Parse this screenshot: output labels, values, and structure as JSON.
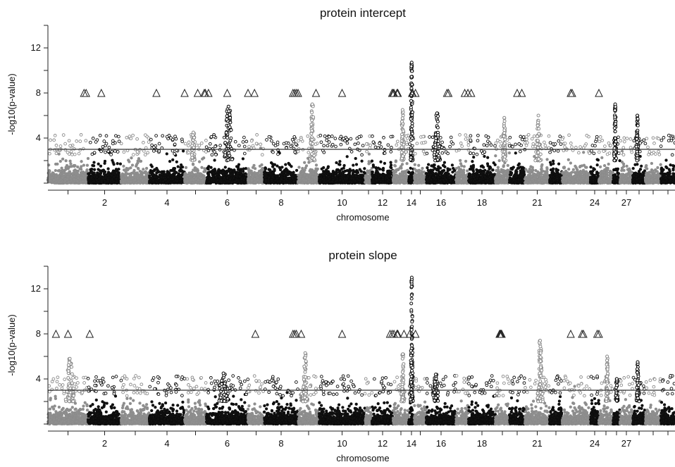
{
  "chart_data": [
    {
      "type": "scatter",
      "title": "protein intercept",
      "xlabel": "chromosome",
      "ylabel": "-log10(p-value)",
      "ylim": [
        0,
        14
      ],
      "yticks": [
        4,
        8,
        12
      ],
      "xticks": [
        {
          "label": "2",
          "chrom": 2
        },
        {
          "label": "4",
          "chrom": 4
        },
        {
          "label": "6",
          "chrom": 6
        },
        {
          "label": "8",
          "chrom": 8
        },
        {
          "label": "10",
          "chrom": 10
        },
        {
          "label": "12",
          "chrom": 12
        },
        {
          "label": "14",
          "chrom": 14
        },
        {
          "label": "16",
          "chrom": 16
        },
        {
          "label": "18",
          "chrom": 18
        },
        {
          "label": "21",
          "chrom": 21
        },
        {
          "label": "24",
          "chrom": 24
        },
        {
          "label": "27",
          "chrom": 27
        }
      ],
      "threshold": 3,
      "peaks": [
        {
          "chrom": 5,
          "max": 4.5
        },
        {
          "chrom": 6,
          "max": 6.8
        },
        {
          "chrom": 9,
          "max": 7.0
        },
        {
          "chrom": 13,
          "max": 6.5
        },
        {
          "chrom": 14,
          "max": 10.7
        },
        {
          "chrom": 16,
          "max": 6.2
        },
        {
          "chrom": 19,
          "max": 5.8
        },
        {
          "chrom": 21,
          "max": 6.0
        },
        {
          "chrom": 26,
          "max": 7.0
        },
        {
          "chrom": 28,
          "max": 6.0
        }
      ],
      "triangles_y": 8,
      "triangles_chrom": [
        1.9,
        1.95,
        2.4,
        4.2,
        5.0,
        5.6,
        5.9,
        5.95,
        6.05,
        6.5,
        7.0,
        7.4,
        8.85,
        8.9,
        8.95,
        9.0,
        9.85,
        10.5,
        12.95,
        13.0,
        13.05,
        13.25,
        13.3,
        14.6,
        14.65,
        14.7,
        15.1,
        16.7,
        16.75,
        17.7,
        17.95,
        18.1,
        20.5,
        20.8,
        23.3,
        23.35,
        25.0
      ]
    },
    {
      "type": "scatter",
      "title": "protein slope",
      "xlabel": "chromosome",
      "ylabel": "-log10(p-value)",
      "ylim": [
        0,
        14
      ],
      "yticks": [
        4,
        8,
        12
      ],
      "xticks": [
        {
          "label": "2",
          "chrom": 2
        },
        {
          "label": "4",
          "chrom": 4
        },
        {
          "label": "6",
          "chrom": 6
        },
        {
          "label": "8",
          "chrom": 8
        },
        {
          "label": "10",
          "chrom": 10
        },
        {
          "label": "12",
          "chrom": 12
        },
        {
          "label": "14",
          "chrom": 14
        },
        {
          "label": "16",
          "chrom": 16
        },
        {
          "label": "18",
          "chrom": 18
        },
        {
          "label": "21",
          "chrom": 21
        },
        {
          "label": "24",
          "chrom": 24
        },
        {
          "label": "27",
          "chrom": 27
        }
      ],
      "threshold": 3,
      "peaks": [
        {
          "chrom": 1,
          "max": 5.8
        },
        {
          "chrom": 6,
          "max": 4.5
        },
        {
          "chrom": 9,
          "max": 6.3
        },
        {
          "chrom": 13,
          "max": 6.2
        },
        {
          "chrom": 14,
          "max": 13.0
        },
        {
          "chrom": 16,
          "max": 4.4
        },
        {
          "chrom": 21,
          "max": 7.4
        },
        {
          "chrom": 25,
          "max": 6.0
        },
        {
          "chrom": 26,
          "max": 4.0
        },
        {
          "chrom": 28,
          "max": 5.5
        }
      ],
      "triangles_y": 8,
      "triangles_chrom": [
        1.2,
        1.5,
        2.05,
        7.45,
        8.85,
        8.9,
        8.95,
        9.15,
        10.5,
        12.85,
        12.95,
        13.05,
        13.25,
        13.3,
        13.7,
        14.2,
        15.1,
        19.3,
        19.35,
        19.4,
        19.45,
        23.3,
        23.7,
        23.75,
        24.8,
        25.0
      ]
    }
  ]
}
